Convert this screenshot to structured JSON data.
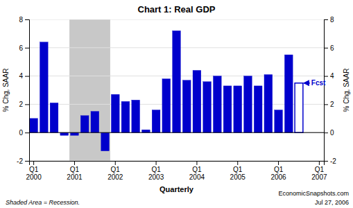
{
  "chart_data": {
    "type": "bar",
    "title": "Chart 1: Real GDP",
    "ylabel": "% Chg, SAAR",
    "y2label": "% Chg, SAAR",
    "xlabel": "Quarterly",
    "footnotes": [
      "Shaded Area = Recession.",
      "EconomicSnapshots.com",
      "Jul 27, 2006"
    ],
    "categories": [
      "Q1\n2000",
      null,
      null,
      null,
      "Q1\n2001",
      null,
      null,
      null,
      "Q1\n2002",
      null,
      null,
      null,
      "Q1\n2003",
      null,
      null,
      null,
      "Q1\n2004",
      null,
      null,
      null,
      "Q1\n2005",
      null,
      null,
      null,
      "Q1\n2006",
      null,
      null,
      null,
      "Q1\n2007"
    ],
    "values": [
      1.0,
      6.4,
      2.1,
      -0.2,
      -0.2,
      1.2,
      1.5,
      -1.3,
      2.7,
      2.2,
      2.3,
      0.2,
      1.6,
      3.8,
      7.2,
      3.7,
      4.4,
      3.6,
      4.0,
      3.3,
      3.3,
      4.0,
      3.3,
      4.1,
      1.6,
      5.5,
      3.5,
      null,
      null
    ],
    "color": "#0000CC",
    "ylim": [
      -2,
      8
    ],
    "yticks": [
      -2,
      0,
      2,
      4,
      6,
      8
    ],
    "y2lim": [
      -2,
      8
    ],
    "y2ticks": [
      -2,
      0,
      2,
      4,
      6,
      8
    ],
    "grid": true,
    "shaded_ranges": [
      {
        "from": 4,
        "to": 7,
        "color": "#C8C8C8"
      }
    ],
    "annotations": [
      {
        "text": "Fcst",
        "index": 26,
        "y": 3.5
      }
    ]
  }
}
